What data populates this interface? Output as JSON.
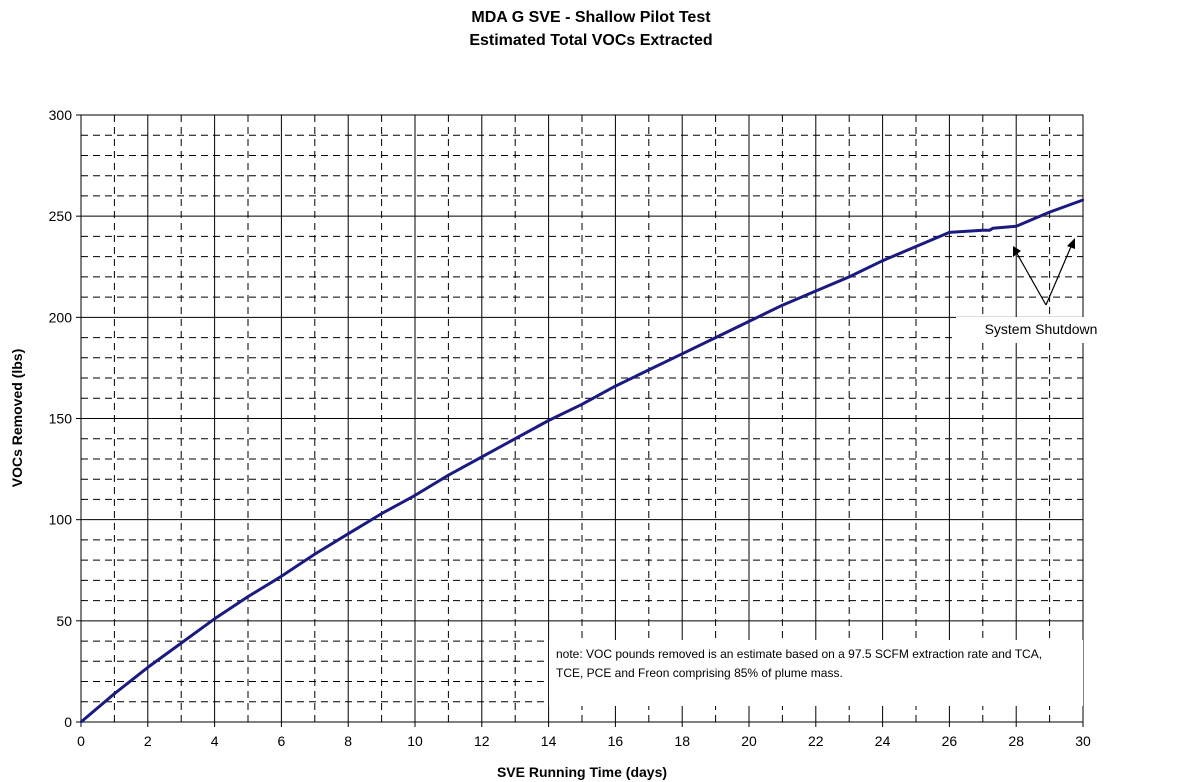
{
  "chart_data": {
    "type": "line",
    "title": "MDA G SVE - Shallow Pilot Test",
    "subtitle": "Estimated Total VOCs Extracted",
    "xlabel": "SVE Running Time (days)",
    "ylabel": "VOCs Removed (lbs)",
    "xlim": [
      0,
      30
    ],
    "ylim": [
      0,
      300
    ],
    "x_ticks": [
      "0",
      "2",
      "4",
      "6",
      "8",
      "10",
      "12",
      "14",
      "16",
      "18",
      "20",
      "22",
      "24",
      "26",
      "28",
      "30"
    ],
    "y_ticks": [
      "0",
      "50",
      "100",
      "150",
      "200",
      "250",
      "300"
    ],
    "grid": true,
    "line_color": "#1a1a80",
    "series": [
      {
        "x": [
          0,
          1,
          2,
          3,
          4,
          5,
          6,
          7,
          8,
          9,
          10,
          11,
          12,
          13,
          14,
          15,
          16,
          17,
          18,
          19,
          20,
          21,
          22,
          23,
          24,
          25,
          26,
          27,
          27.2,
          27.3,
          28,
          29,
          30
        ],
        "y": [
          0,
          14,
          27,
          39,
          51,
          62,
          72,
          83,
          93,
          103,
          112,
          122,
          131,
          140,
          149,
          157,
          166,
          174,
          182,
          190,
          198,
          206,
          213,
          220,
          228,
          235,
          242,
          243,
          243,
          244,
          245,
          252,
          258
        ]
      }
    ],
    "annotations": {
      "callout": "System Shutdown",
      "note_line1": "note: VOC pounds removed is an estimate based on a 97.5 SCFM extraction rate and TCA,",
      "note_line2": "TCE, PCE and Freon comprising 85% of plume mass."
    }
  }
}
